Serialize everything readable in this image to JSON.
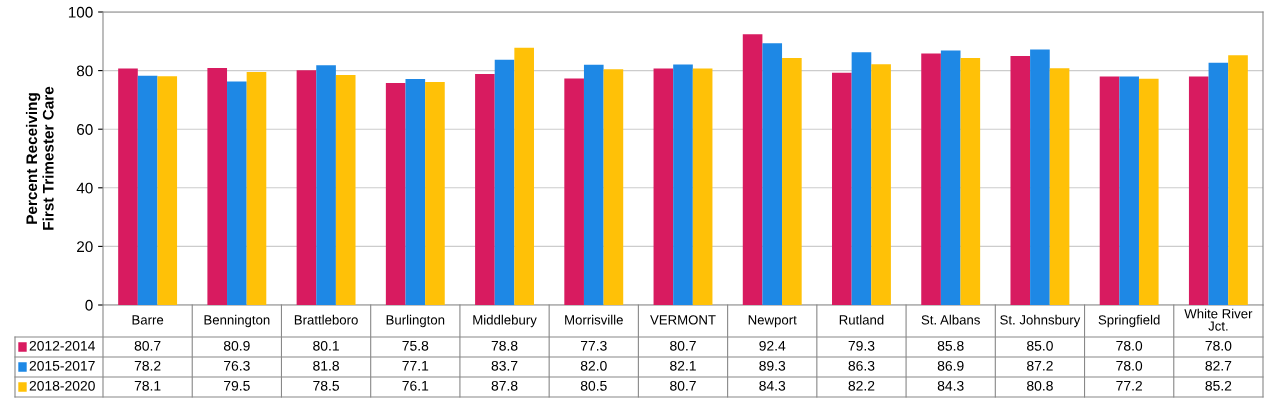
{
  "chart_data": {
    "type": "bar",
    "ylabel": "Percent Receiving\nFirst Trimester Care",
    "categories": [
      "Barre",
      "Bennington",
      "Brattleboro",
      "Burlington",
      "Middlebury",
      "Morrisville",
      "VERMONT",
      "Newport",
      "Rutland",
      "St. Albans",
      "St. Johnsbury",
      "Springfield",
      "White River Jct."
    ],
    "series": [
      {
        "name": "2012-2014",
        "color": "#d81b60",
        "values": [
          80.7,
          80.9,
          80.1,
          75.8,
          78.8,
          77.3,
          80.7,
          92.4,
          79.3,
          85.8,
          85.0,
          78.0,
          78.0
        ],
        "value_labels": [
          "80.7",
          "80.9",
          "80.1",
          "75.8",
          "78.8",
          "77.3",
          "80.7",
          "92.4",
          "79.3",
          "85.8",
          "85.0",
          "78.0",
          "78.0"
        ]
      },
      {
        "name": "2015-2017",
        "color": "#1e88e5",
        "values": [
          78.2,
          76.3,
          81.8,
          77.1,
          83.7,
          82.0,
          82.1,
          89.3,
          86.3,
          86.9,
          87.2,
          78.0,
          82.7
        ],
        "value_labels": [
          "78.2",
          "76.3",
          "81.8",
          "77.1",
          "83.7",
          "82.0",
          "82.1",
          "89.3",
          "86.3",
          "86.9",
          "87.2",
          "78.0",
          "82.7"
        ]
      },
      {
        "name": "2018-2020",
        "color": "#ffc107",
        "values": [
          78.1,
          79.5,
          78.5,
          76.1,
          87.8,
          80.5,
          80.7,
          84.3,
          82.2,
          84.3,
          80.8,
          77.2,
          85.2
        ],
        "value_labels": [
          "78.1",
          "79.5",
          "78.5",
          "76.1",
          "87.8",
          "80.5",
          "80.7",
          "84.3",
          "82.2",
          "84.3",
          "80.8",
          "77.2",
          "85.2"
        ]
      }
    ],
    "ylim": [
      0,
      100
    ],
    "yticks": [
      0,
      20,
      40,
      60,
      80,
      100
    ],
    "grid": "y",
    "legend": "bottom"
  }
}
